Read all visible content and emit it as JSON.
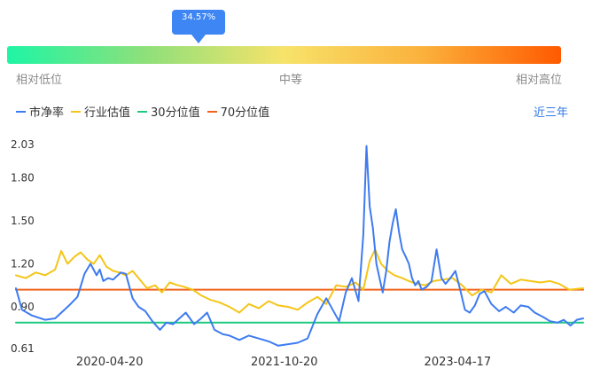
{
  "percentile_badge": "34.57%",
  "percentile_value": 0.3457,
  "scale_labels": {
    "low": "相对低位",
    "mid": "中等",
    "high": "相对高位"
  },
  "colors": {
    "pb": "#3e7bf0",
    "industry": "#f5c518",
    "p30": "#1ec981",
    "p70": "#f1631a",
    "gradient": [
      "#1ef5a5",
      "#8ee07a",
      "#f7e36a",
      "#fbb13c",
      "#ff5a00"
    ],
    "link": "#2f78e8"
  },
  "legend": [
    {
      "label": "市净率",
      "color": "#3e7bf0"
    },
    {
      "label": "行业估值",
      "color": "#f5c518"
    },
    {
      "label": "30分位值",
      "color": "#1ec981"
    },
    {
      "label": "70分位值",
      "color": "#f1631a"
    }
  ],
  "range_label": "近三年",
  "chart_data": {
    "type": "line",
    "y_ticks": [
      "2.03",
      "1.80",
      "1.50",
      "1.20",
      "0.90",
      "0.61"
    ],
    "x_ticks": [
      "2020-04-20",
      "2021-10-20",
      "2023-04-17"
    ],
    "ylim": [
      0.61,
      2.03
    ],
    "grid": false,
    "legend_position": "top-left",
    "x_range": [
      "2019-07-01",
      "2024-05-15"
    ],
    "series": [
      {
        "name": "市净率",
        "x": [
          "2019-07-01",
          "2019-07-20",
          "2019-08-20",
          "2019-09-30",
          "2019-11-01",
          "2019-12-15",
          "2020-01-10",
          "2020-02-01",
          "2020-02-20",
          "2020-03-10",
          "2020-03-20",
          "2020-03-31",
          "2020-04-15",
          "2020-05-01",
          "2020-05-25",
          "2020-06-10",
          "2020-07-01",
          "2020-07-20",
          "2020-08-10",
          "2020-09-01",
          "2020-09-25",
          "2020-10-15",
          "2020-11-05",
          "2020-11-25",
          "2020-12-15",
          "2021-01-10",
          "2021-02-01",
          "2021-02-20",
          "2021-03-15",
          "2021-04-10",
          "2021-05-01",
          "2021-06-01",
          "2021-07-01",
          "2021-08-01",
          "2021-09-01",
          "2021-10-01",
          "2021-11-01",
          "2021-12-01",
          "2022-01-01",
          "2022-02-01",
          "2022-03-01",
          "2022-04-10",
          "2022-05-01",
          "2022-05-20",
          "2022-06-10",
          "2022-06-25",
          "2022-07-05",
          "2022-07-15",
          "2022-07-25",
          "2022-08-05",
          "2022-08-15",
          "2022-08-25",
          "2022-09-05",
          "2022-09-15",
          "2022-09-25",
          "2022-10-05",
          "2022-10-15",
          "2022-10-25",
          "2022-11-05",
          "2022-11-15",
          "2022-11-25",
          "2022-12-05",
          "2022-12-15",
          "2022-12-25",
          "2023-01-10",
          "2023-01-25",
          "2023-02-10",
          "2023-02-25",
          "2023-03-10",
          "2023-03-25",
          "2023-04-10",
          "2023-04-25",
          "2023-05-10",
          "2023-05-25",
          "2023-06-10",
          "2023-06-25",
          "2023-07-10",
          "2023-08-01",
          "2023-08-25",
          "2023-09-15",
          "2023-10-10",
          "2023-11-01",
          "2023-11-25",
          "2023-12-15",
          "2024-01-10",
          "2024-02-01",
          "2024-02-25",
          "2024-03-15",
          "2024-04-05",
          "2024-04-25",
          "2024-05-15"
        ],
        "values": [
          1.03,
          0.88,
          0.84,
          0.81,
          0.82,
          0.91,
          0.97,
          1.13,
          1.2,
          1.12,
          1.16,
          1.08,
          1.1,
          1.09,
          1.14,
          1.13,
          0.96,
          0.9,
          0.87,
          0.8,
          0.74,
          0.79,
          0.78,
          0.82,
          0.86,
          0.78,
          0.82,
          0.86,
          0.74,
          0.71,
          0.7,
          0.67,
          0.7,
          0.68,
          0.66,
          0.63,
          0.64,
          0.65,
          0.68,
          0.85,
          0.96,
          0.8,
          1.0,
          1.1,
          0.94,
          1.4,
          2.02,
          1.6,
          1.45,
          1.2,
          1.1,
          1.0,
          1.15,
          1.35,
          1.48,
          1.58,
          1.42,
          1.3,
          1.25,
          1.2,
          1.1,
          1.05,
          1.08,
          1.02,
          1.04,
          1.08,
          1.3,
          1.1,
          1.06,
          1.1,
          1.15,
          1.02,
          0.88,
          0.86,
          0.91,
          0.99,
          1.01,
          0.92,
          0.87,
          0.9,
          0.86,
          0.91,
          0.9,
          0.86,
          0.83,
          0.8,
          0.79,
          0.81,
          0.77,
          0.81,
          0.82
        ]
      },
      {
        "name": "行业估值",
        "x": [
          "2019-07-01",
          "2019-08-01",
          "2019-09-01",
          "2019-10-01",
          "2019-11-01",
          "2019-11-20",
          "2019-12-10",
          "2020-01-01",
          "2020-01-20",
          "2020-02-10",
          "2020-03-01",
          "2020-03-20",
          "2020-04-10",
          "2020-05-01",
          "2020-05-20",
          "2020-06-10",
          "2020-07-01",
          "2020-07-20",
          "2020-08-15",
          "2020-09-10",
          "2020-10-01",
          "2020-10-25",
          "2020-11-20",
          "2020-12-10",
          "2021-01-05",
          "2021-02-01",
          "2021-03-01",
          "2021-04-01",
          "2021-05-01",
          "2021-06-01",
          "2021-07-01",
          "2021-08-01",
          "2021-09-01",
          "2021-10-01",
          "2021-11-01",
          "2021-12-01",
          "2022-01-01",
          "2022-02-01",
          "2022-03-01",
          "2022-04-01",
          "2022-05-01",
          "2022-06-01",
          "2022-06-25",
          "2022-07-15",
          "2022-08-01",
          "2022-08-20",
          "2022-09-10",
          "2022-10-01",
          "2022-10-25",
          "2022-11-15",
          "2022-12-10",
          "2023-01-05",
          "2023-02-01",
          "2023-03-01",
          "2023-04-01",
          "2023-05-01",
          "2023-06-01",
          "2023-07-01",
          "2023-08-01",
          "2023-09-01",
          "2023-10-01",
          "2023-11-01",
          "2023-12-01",
          "2024-01-01",
          "2024-02-01",
          "2024-03-01",
          "2024-04-01",
          "2024-05-15"
        ],
        "values": [
          1.12,
          1.1,
          1.14,
          1.12,
          1.16,
          1.29,
          1.2,
          1.25,
          1.28,
          1.23,
          1.2,
          1.26,
          1.18,
          1.15,
          1.14,
          1.12,
          1.15,
          1.1,
          1.03,
          1.05,
          1.0,
          1.07,
          1.05,
          1.04,
          1.02,
          0.98,
          0.95,
          0.93,
          0.9,
          0.86,
          0.92,
          0.89,
          0.94,
          0.91,
          0.9,
          0.88,
          0.93,
          0.97,
          0.92,
          1.05,
          1.04,
          1.07,
          1.02,
          1.22,
          1.3,
          1.2,
          1.15,
          1.12,
          1.1,
          1.08,
          1.06,
          1.05,
          1.08,
          1.09,
          1.1,
          1.05,
          0.98,
          1.02,
          1.0,
          1.12,
          1.06,
          1.09,
          1.08,
          1.07,
          1.08,
          1.06,
          1.02,
          1.03
        ]
      },
      {
        "name": "30分位值",
        "x": [
          "2019-07-01",
          "2024-05-15"
        ],
        "values": [
          0.79,
          0.79
        ]
      },
      {
        "name": "70分位值",
        "x": [
          "2019-07-01",
          "2024-05-15"
        ],
        "values": [
          1.02,
          1.02
        ]
      }
    ]
  }
}
